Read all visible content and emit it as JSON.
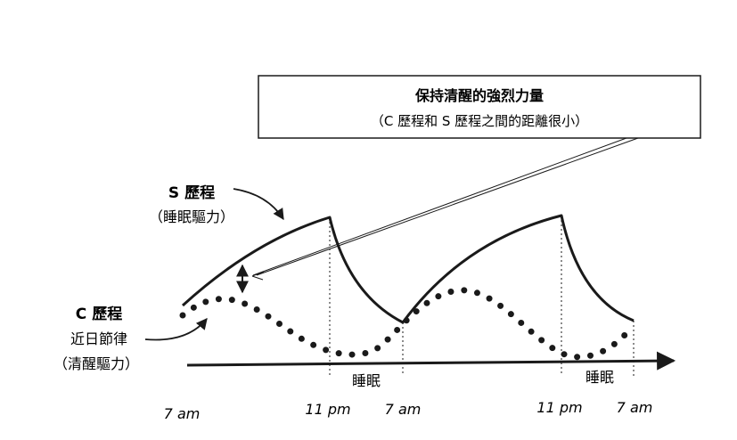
{
  "callout": {
    "line1": "保持清醒的強烈力量",
    "line2": "（C 歷程和 S 歷程之間的距離很小）"
  },
  "s_process": {
    "label": "S 歷程",
    "sublabel": "（睡眠驅力）"
  },
  "c_process": {
    "label": "C 歷程",
    "sublabel1": "近日節律",
    "sublabel2": "（清醒驅力）"
  },
  "sleep_labels": [
    "睡眠",
    "睡眠"
  ],
  "time_labels": [
    "7 am",
    "11 pm",
    "7 am",
    "11 pm",
    "7 am"
  ],
  "colors": {
    "ink": "#1a1a1a",
    "background": "#ffffff"
  }
}
